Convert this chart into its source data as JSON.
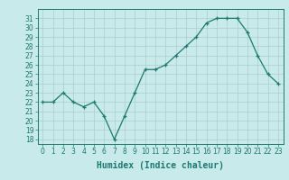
{
  "x": [
    0,
    1,
    2,
    3,
    4,
    5,
    6,
    7,
    8,
    9,
    10,
    11,
    12,
    13,
    14,
    15,
    16,
    17,
    18,
    19,
    20,
    21,
    22,
    23
  ],
  "y": [
    22,
    22,
    23,
    22,
    21.5,
    22,
    20.5,
    18,
    20.5,
    23,
    25.5,
    25.5,
    26,
    27,
    28,
    29,
    30.5,
    31,
    31,
    31,
    29.5,
    27,
    25,
    24
  ],
  "line_color": "#1a7a6e",
  "marker": "+",
  "bg_color": "#c8eaea",
  "grid_color": "#aacccc",
  "xlabel": "Humidex (Indice chaleur)",
  "ylabel_ticks": [
    18,
    19,
    20,
    21,
    22,
    23,
    24,
    25,
    26,
    27,
    28,
    29,
    30,
    31
  ],
  "ylim": [
    17.5,
    32
  ],
  "xlim": [
    -0.5,
    23.5
  ],
  "tick_color": "#1a7a6e",
  "label_fontsize": 7,
  "tick_fontsize": 5.5
}
